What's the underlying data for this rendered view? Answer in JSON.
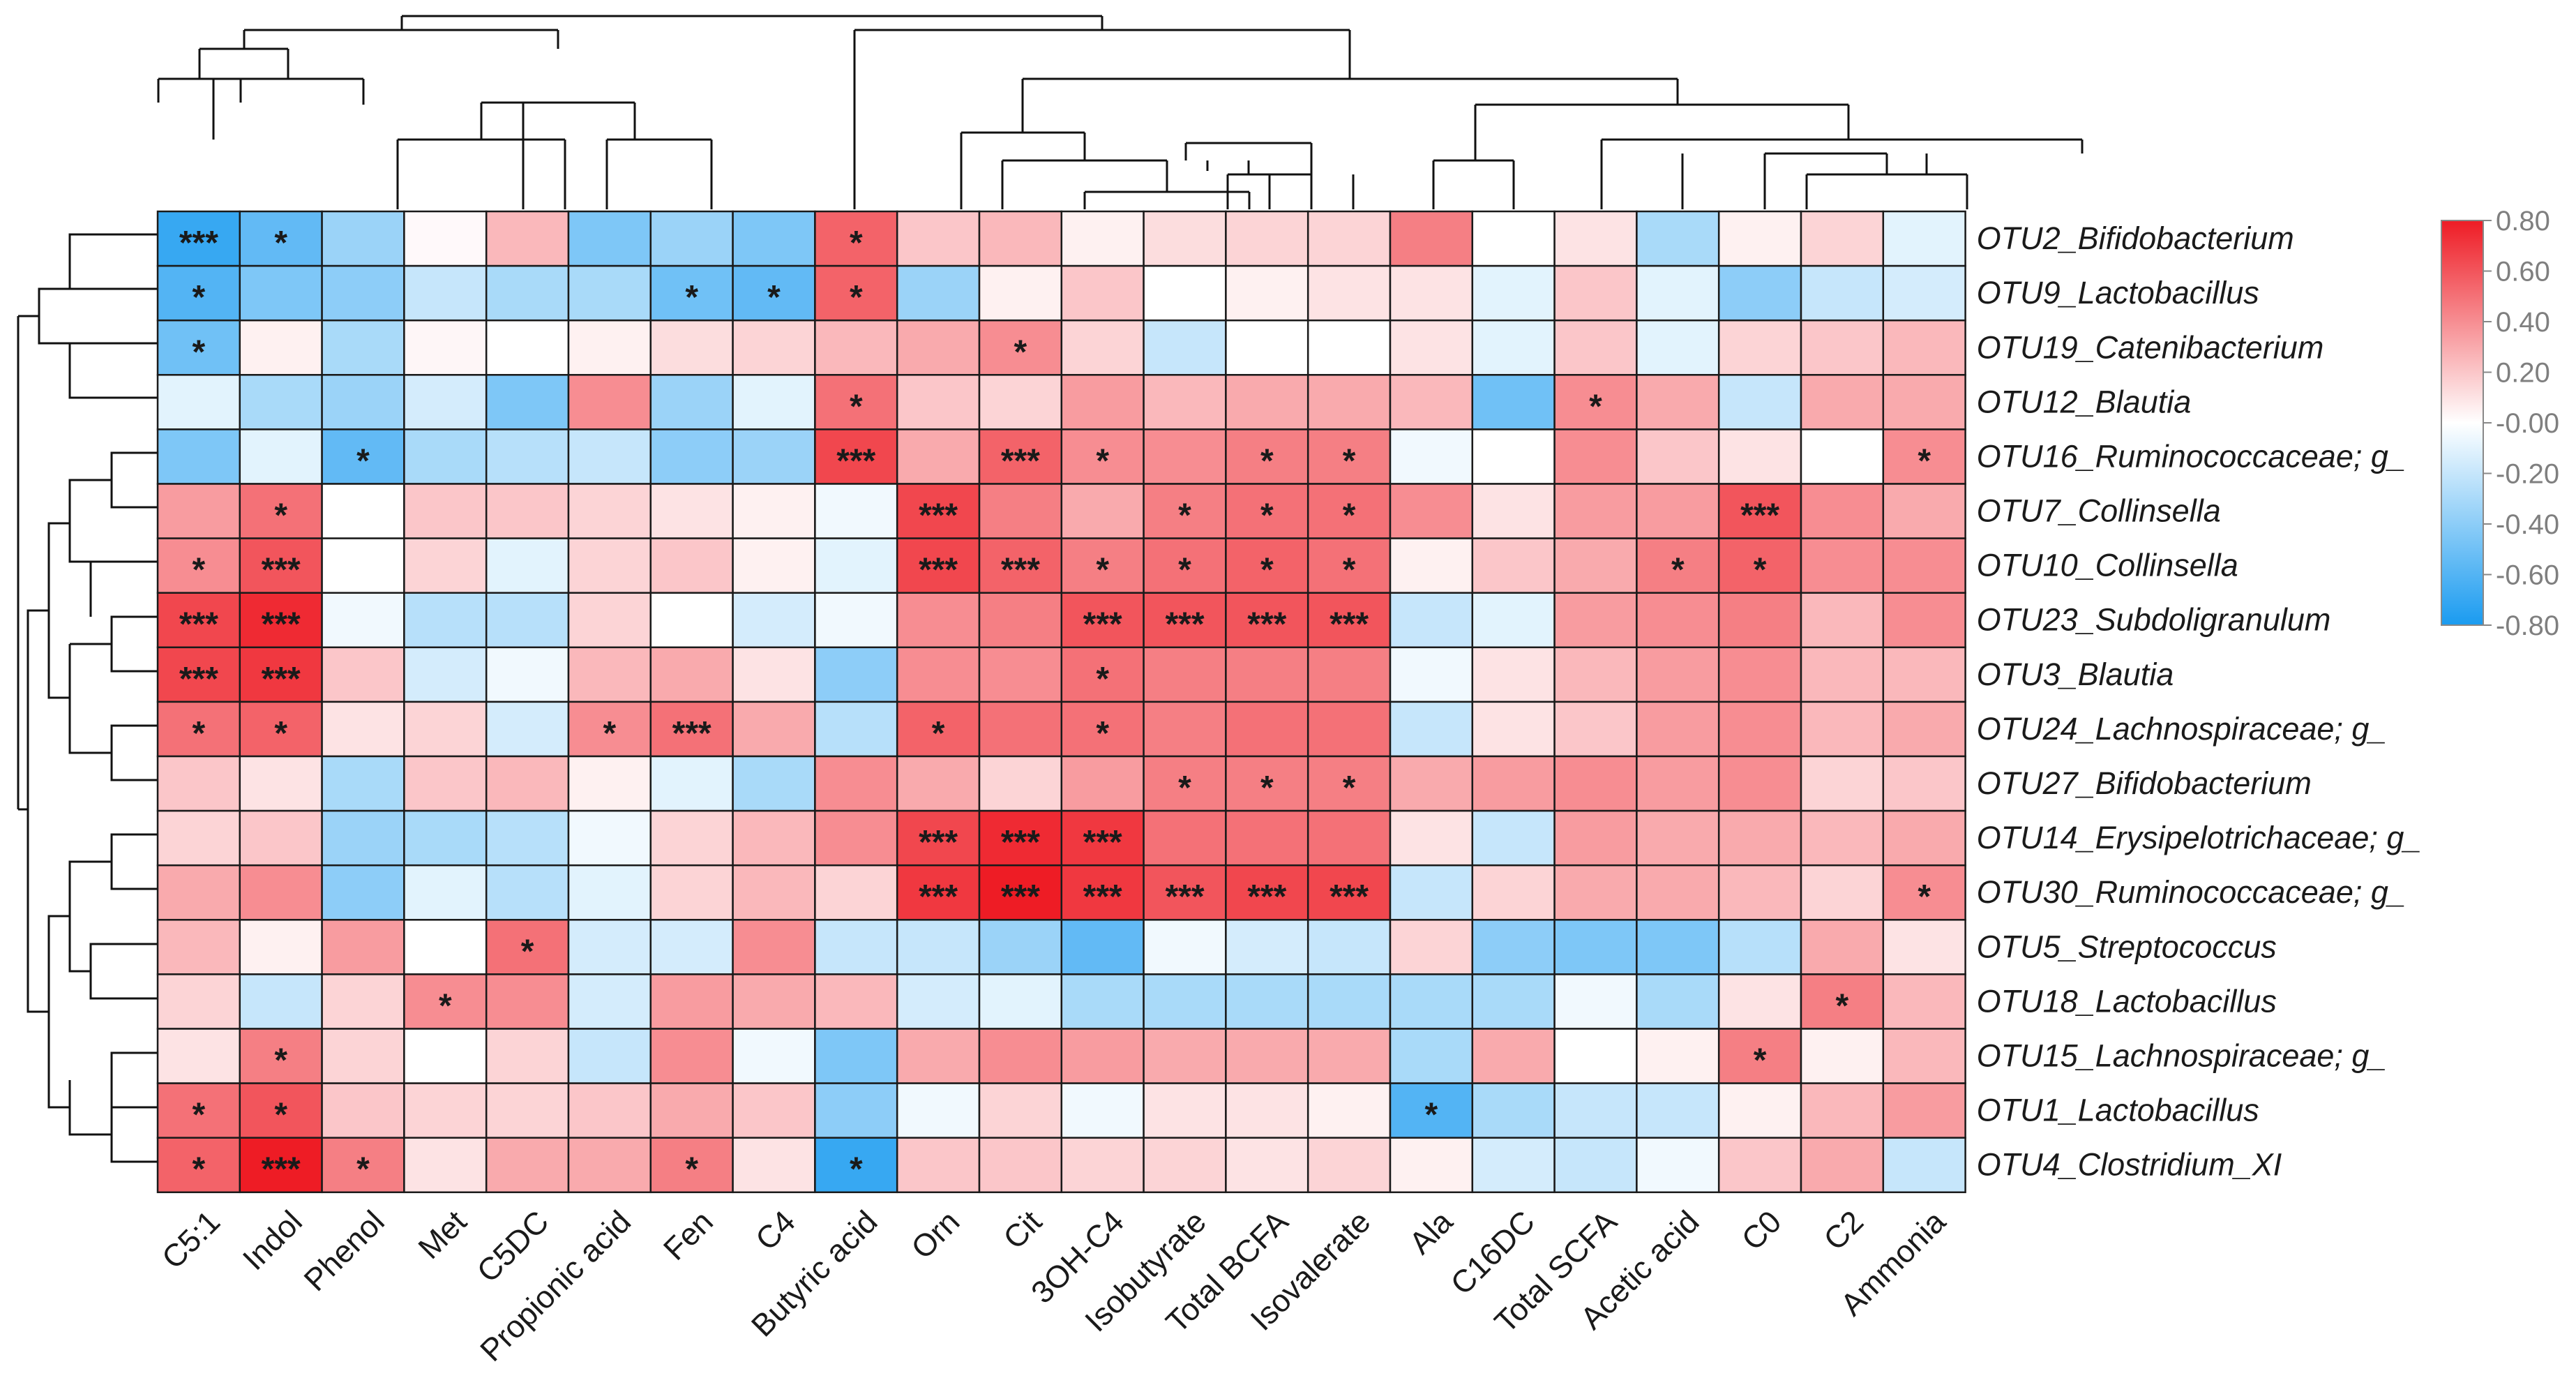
{
  "chart_data": {
    "type": "heatmap",
    "title": "",
    "row_labels": [
      "OTU2_Bifidobacterium",
      "OTU9_Lactobacillus",
      "OTU19_Catenibacterium",
      "OTU12_Blautia",
      "OTU16_Ruminococcaceae; g_",
      "OTU7_Collinsella",
      "OTU10_Collinsella",
      "OTU23_Subdoligranulum",
      "OTU3_Blautia",
      "OTU24_Lachnospiraceae; g_",
      "OTU27_Bifidobacterium",
      "OTU14_Erysipelotrichaceae; g_",
      "OTU30_Ruminococcaceae; g_",
      "OTU5_Streptococcus",
      "OTU18_Lactobacillus",
      "OTU15_Lachnospiraceae; g_",
      "OTU1_Lactobacillus",
      "OTU4_Clostridium_XI"
    ],
    "column_labels": [
      "C5:1",
      "Indol",
      "Phenol",
      "Met",
      "C5DC",
      "Propionic acid",
      "Fen",
      "C4",
      "Butyric acid",
      "Orn",
      "Cit",
      "3OH-C4",
      "Isobutyrate",
      "Total BCFA",
      "Isovalerate",
      "Ala",
      "C16DC",
      "Total SCFA",
      "Acetic acid",
      "C0",
      "C2",
      "Ammonia"
    ],
    "values": [
      [
        -0.7,
        -0.55,
        -0.35,
        0.02,
        0.25,
        -0.45,
        -0.35,
        -0.45,
        0.55,
        0.2,
        0.25,
        0.05,
        0.12,
        0.15,
        0.15,
        0.45,
        0.0,
        0.1,
        -0.3,
        0.05,
        0.15,
        -0.1
      ],
      [
        -0.6,
        -0.45,
        -0.4,
        -0.2,
        -0.3,
        -0.3,
        -0.5,
        -0.55,
        0.55,
        -0.35,
        0.05,
        0.2,
        0.0,
        0.05,
        0.1,
        0.1,
        -0.1,
        0.2,
        -0.1,
        -0.4,
        -0.2,
        -0.15
      ],
      [
        -0.5,
        0.05,
        -0.3,
        0.03,
        0.0,
        0.05,
        0.12,
        0.15,
        0.25,
        0.3,
        0.4,
        0.15,
        -0.2,
        0.0,
        0.0,
        0.1,
        -0.1,
        0.2,
        -0.1,
        0.15,
        0.2,
        0.25
      ],
      [
        -0.1,
        -0.3,
        -0.35,
        -0.15,
        -0.45,
        0.4,
        -0.35,
        -0.1,
        0.5,
        0.2,
        0.15,
        0.35,
        0.25,
        0.3,
        0.3,
        0.25,
        -0.5,
        0.4,
        0.3,
        -0.2,
        0.3,
        0.3
      ],
      [
        -0.45,
        -0.1,
        -0.55,
        -0.3,
        -0.25,
        -0.2,
        -0.4,
        -0.35,
        0.65,
        0.3,
        0.55,
        0.4,
        0.4,
        0.45,
        0.45,
        -0.05,
        0.0,
        0.4,
        0.2,
        0.1,
        0.0,
        0.4
      ],
      [
        0.35,
        0.5,
        0.0,
        0.2,
        0.2,
        0.15,
        0.1,
        0.05,
        -0.05,
        0.65,
        0.45,
        0.3,
        0.45,
        0.5,
        0.5,
        0.4,
        0.1,
        0.35,
        0.35,
        0.6,
        0.4,
        0.3
      ],
      [
        0.4,
        0.6,
        0.0,
        0.15,
        -0.1,
        0.15,
        0.2,
        0.05,
        -0.1,
        0.65,
        0.55,
        0.45,
        0.5,
        0.55,
        0.5,
        0.05,
        0.2,
        0.3,
        0.45,
        0.55,
        0.4,
        0.4
      ],
      [
        0.65,
        0.75,
        -0.05,
        -0.25,
        -0.25,
        0.15,
        0.0,
        -0.15,
        -0.05,
        0.4,
        0.45,
        0.6,
        0.6,
        0.6,
        0.6,
        -0.2,
        -0.1,
        0.35,
        0.4,
        0.45,
        0.25,
        0.4
      ],
      [
        0.65,
        0.7,
        0.2,
        -0.15,
        -0.05,
        0.25,
        0.3,
        0.1,
        -0.4,
        0.4,
        0.4,
        0.5,
        0.45,
        0.45,
        0.45,
        -0.05,
        0.1,
        0.25,
        0.35,
        0.4,
        0.25,
        0.25
      ],
      [
        0.5,
        0.55,
        0.1,
        0.15,
        -0.15,
        0.4,
        0.5,
        0.3,
        -0.25,
        0.55,
        0.5,
        0.5,
        0.45,
        0.5,
        0.5,
        -0.2,
        0.1,
        0.2,
        0.35,
        0.4,
        0.25,
        0.3
      ],
      [
        0.2,
        0.1,
        -0.3,
        0.2,
        0.25,
        0.05,
        -0.1,
        -0.3,
        0.4,
        0.3,
        0.15,
        0.35,
        0.45,
        0.45,
        0.45,
        0.3,
        0.35,
        0.4,
        0.35,
        0.4,
        0.15,
        0.2
      ],
      [
        0.15,
        0.2,
        -0.35,
        -0.3,
        -0.25,
        -0.05,
        0.15,
        0.25,
        0.4,
        0.65,
        0.75,
        0.7,
        0.5,
        0.5,
        0.5,
        0.1,
        -0.2,
        0.35,
        0.3,
        0.3,
        0.25,
        0.3
      ],
      [
        0.3,
        0.4,
        -0.4,
        -0.1,
        -0.25,
        -0.1,
        0.15,
        0.25,
        0.15,
        0.7,
        0.85,
        0.7,
        0.6,
        0.65,
        0.65,
        -0.2,
        0.15,
        0.3,
        0.3,
        0.25,
        0.15,
        0.4
      ],
      [
        0.25,
        0.05,
        0.35,
        0.0,
        0.5,
        -0.15,
        -0.15,
        0.4,
        -0.2,
        -0.2,
        -0.35,
        -0.55,
        -0.05,
        -0.15,
        -0.2,
        0.15,
        -0.4,
        -0.45,
        -0.45,
        -0.25,
        0.3,
        0.1
      ],
      [
        0.15,
        -0.2,
        0.15,
        0.4,
        0.4,
        -0.15,
        0.35,
        0.3,
        0.25,
        -0.15,
        -0.1,
        -0.3,
        -0.3,
        -0.3,
        -0.3,
        -0.3,
        -0.3,
        -0.05,
        -0.3,
        0.1,
        0.45,
        0.25
      ],
      [
        0.1,
        0.45,
        0.15,
        0.0,
        0.15,
        -0.2,
        0.4,
        -0.05,
        -0.45,
        0.3,
        0.4,
        0.35,
        0.3,
        0.3,
        0.3,
        -0.3,
        0.3,
        0.0,
        0.05,
        0.45,
        0.05,
        0.25
      ],
      [
        0.5,
        0.6,
        0.2,
        0.15,
        0.15,
        0.2,
        0.3,
        0.2,
        -0.4,
        -0.05,
        0.15,
        -0.05,
        0.1,
        0.1,
        0.05,
        -0.6,
        -0.3,
        -0.2,
        -0.2,
        0.05,
        0.25,
        0.35
      ],
      [
        0.55,
        0.8,
        0.45,
        0.1,
        0.3,
        0.3,
        0.45,
        0.1,
        -0.7,
        0.2,
        0.2,
        0.15,
        0.15,
        0.1,
        0.15,
        0.05,
        -0.15,
        -0.2,
        -0.05,
        0.2,
        0.3,
        -0.2
      ]
    ],
    "significance": [
      [
        "***",
        "*",
        "",
        "",
        "",
        "",
        "",
        "",
        "*",
        "",
        "",
        "",
        "",
        "",
        "",
        "",
        "",
        "",
        "",
        "",
        "",
        ""
      ],
      [
        "*",
        "",
        "",
        "",
        "",
        "",
        "*",
        "*",
        "*",
        "",
        "",
        "",
        "",
        "",
        "",
        "",
        "",
        "",
        "",
        "",
        "",
        ""
      ],
      [
        "*",
        "",
        "",
        "",
        "",
        "",
        "",
        "",
        "",
        "",
        "*",
        "",
        "",
        "",
        "",
        "",
        "",
        "",
        "",
        "",
        "",
        ""
      ],
      [
        "",
        "",
        "",
        "",
        "",
        "",
        "",
        "",
        "*",
        "",
        "",
        "",
        "",
        "",
        "",
        "",
        "",
        "*",
        "",
        "",
        "",
        ""
      ],
      [
        "",
        "",
        "*",
        "",
        "",
        "",
        "",
        "",
        "***",
        "",
        "***",
        "*",
        "",
        "*",
        "*",
        "",
        "",
        "",
        "",
        "",
        "",
        "*"
      ],
      [
        "",
        "*",
        "",
        "",
        "",
        "",
        "",
        "",
        "",
        "***",
        "",
        "",
        "*",
        "*",
        "*",
        "",
        "",
        "",
        "",
        "***",
        "",
        ""
      ],
      [
        "*",
        "***",
        "",
        "",
        "",
        "",
        "",
        "",
        "",
        "***",
        "***",
        "*",
        "*",
        "*",
        "*",
        "",
        "",
        "",
        "*",
        "*",
        "",
        ""
      ],
      [
        "***",
        "***",
        "",
        "",
        "",
        "",
        "",
        "",
        "",
        "",
        "",
        "***",
        "***",
        "***",
        "***",
        "",
        "",
        "",
        "",
        "",
        "",
        ""
      ],
      [
        "***",
        "***",
        "",
        "",
        "",
        "",
        "",
        "",
        "",
        "",
        "",
        "*",
        "",
        "",
        "",
        "",
        "",
        "",
        "",
        "",
        "",
        ""
      ],
      [
        "*",
        "*",
        "",
        "",
        "",
        "*",
        "***",
        "",
        "",
        "*",
        "",
        "*",
        "",
        "",
        "",
        "",
        "",
        "",
        "",
        "",
        "",
        ""
      ],
      [
        "",
        "",
        "",
        "",
        "",
        "",
        "",
        "",
        "",
        "",
        "",
        "",
        "*",
        "*",
        "*",
        "",
        "",
        "",
        "",
        "",
        "",
        ""
      ],
      [
        "",
        "",
        "",
        "",
        "",
        "",
        "",
        "",
        "",
        "***",
        "***",
        "***",
        "",
        "",
        "",
        "",
        "",
        "",
        "",
        "",
        "",
        ""
      ],
      [
        "",
        "",
        "",
        "",
        "",
        "",
        "",
        "",
        "",
        "***",
        "***",
        "***",
        "***",
        "***",
        "***",
        "",
        "",
        "",
        "",
        "",
        "",
        "*"
      ],
      [
        "",
        "",
        "",
        "",
        "*",
        "",
        "",
        "",
        "",
        "",
        "",
        "",
        "",
        "",
        "",
        "",
        "",
        "",
        "",
        "",
        "",
        ""
      ],
      [
        "",
        "",
        "",
        "*",
        "",
        "",
        "",
        "",
        "",
        "",
        "",
        "",
        "",
        "",
        "",
        "",
        "",
        "",
        "",
        "",
        "*",
        ""
      ],
      [
        "",
        "*",
        "",
        "",
        "",
        "",
        "",
        "",
        "",
        "",
        "",
        "",
        "",
        "",
        "",
        "",
        "",
        "",
        "",
        "*",
        "",
        ""
      ],
      [
        "*",
        "*",
        "",
        "",
        "",
        "",
        "",
        "",
        "",
        "",
        "",
        "",
        "",
        "",
        "",
        "*",
        "",
        "",
        "",
        "",
        "",
        ""
      ],
      [
        "*",
        "***",
        "*",
        "",
        "",
        "",
        "*",
        "",
        "*",
        "",
        "",
        "",
        "",
        "",
        "",
        "",
        "",
        "",
        "",
        "",
        "",
        ""
      ]
    ],
    "color_scale": {
      "min": -0.8,
      "max": 0.8,
      "low_color": "#1a9bf0",
      "mid_color": "#ffffff",
      "high_color": "#ee1c25",
      "ticks": [
        "0.80",
        "0.60",
        "0.40",
        "0.20",
        "-0.00",
        "-0.20",
        "-0.40",
        "-0.60",
        "-0.80"
      ]
    },
    "column_dendrogram": true,
    "row_dendrogram": true,
    "legend_position": "right"
  }
}
